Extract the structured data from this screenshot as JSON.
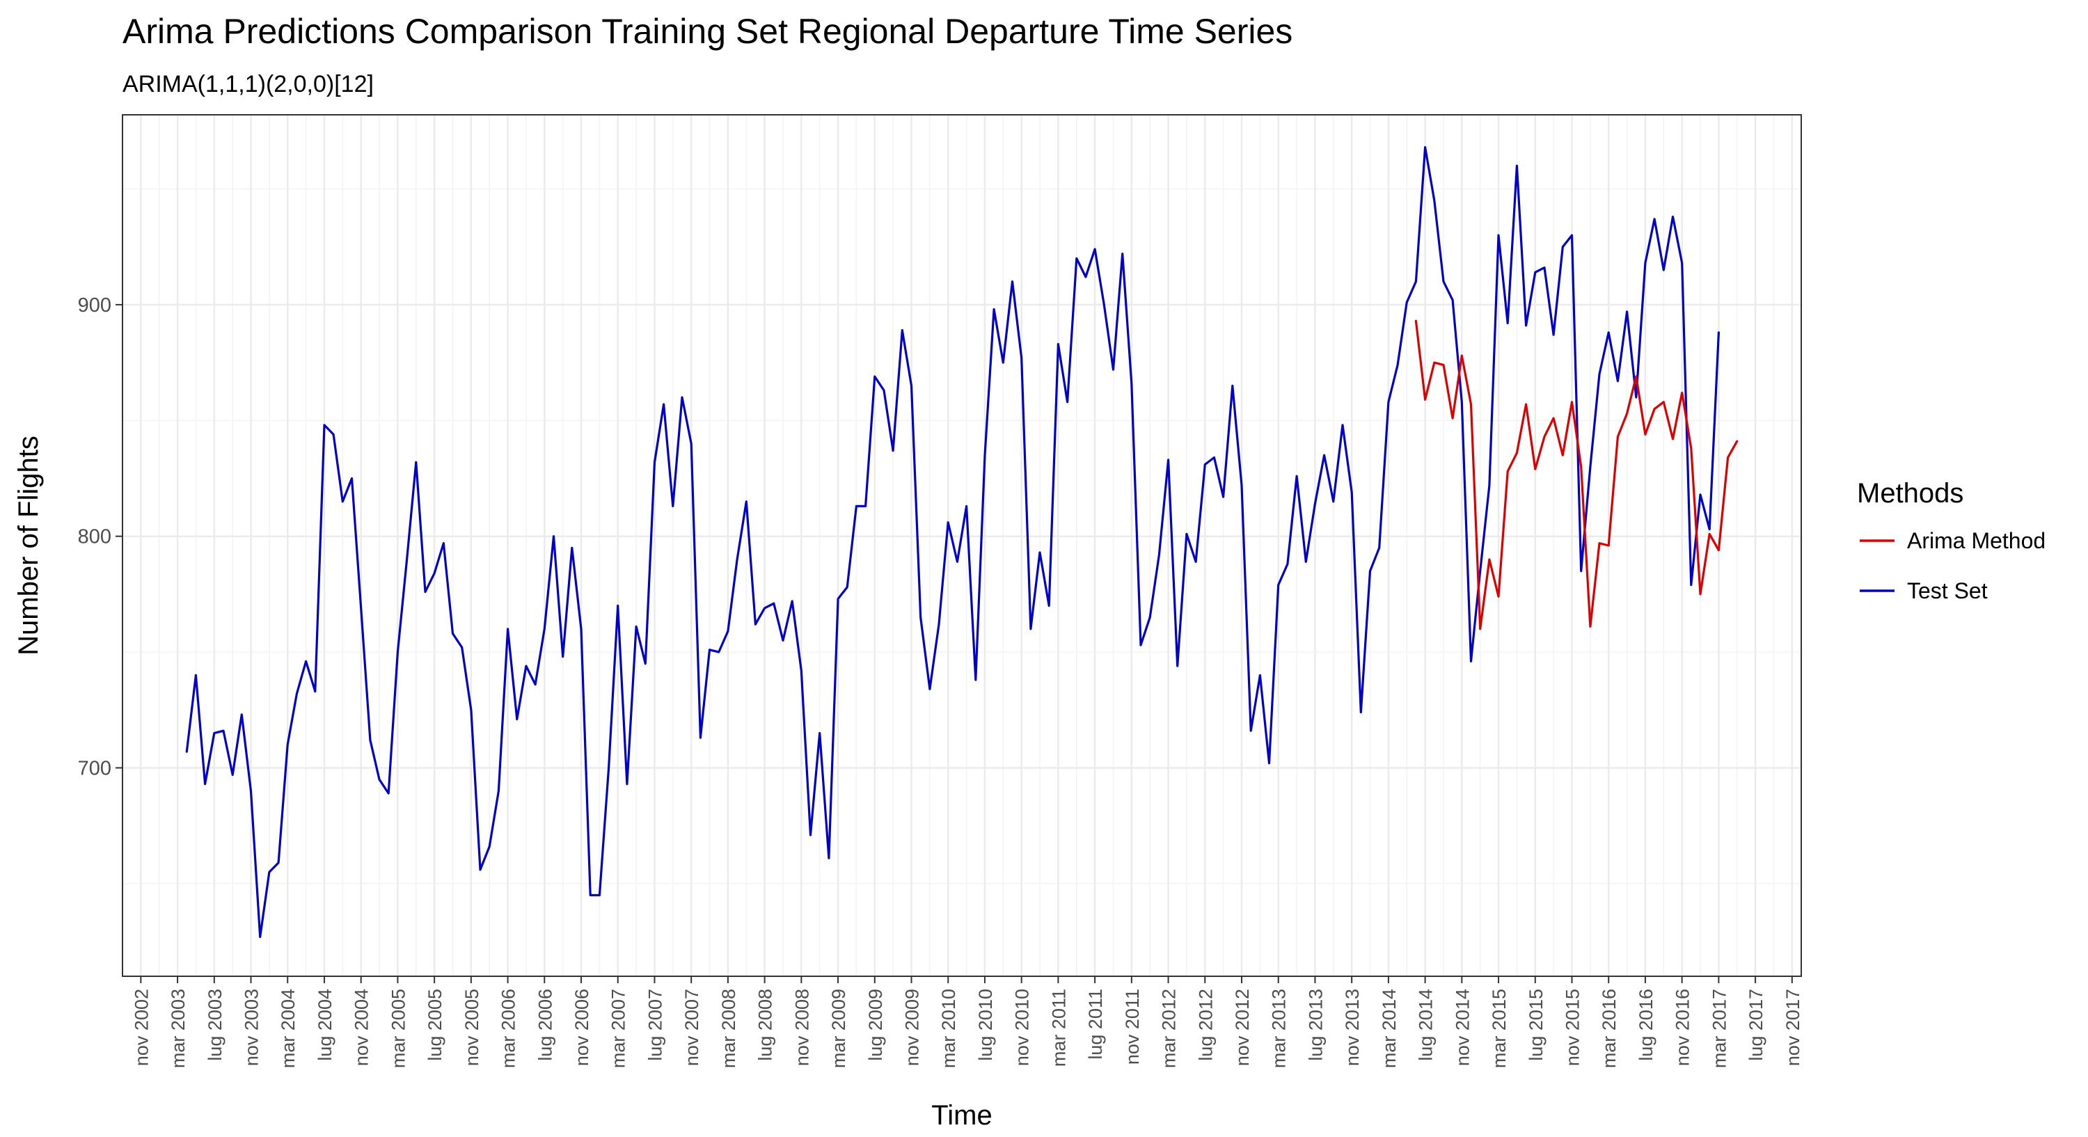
{
  "chart_data": {
    "type": "line",
    "title": "Arima Predictions Comparison Training Set Regional Departure Time Series",
    "subtitle": "ARIMA(1,1,1)(2,0,0)[12]",
    "xlabel": "Time",
    "ylabel": "Number of Flights",
    "x_start": "2003-04",
    "x_step": "month",
    "xlim": [
      "2002-09",
      "2017-12"
    ],
    "ylim": [
      610,
      982
    ],
    "yticks": [
      700,
      800,
      900
    ],
    "xtick_labels": [
      "nov 2002",
      "mar 2003",
      "lug 2003",
      "nov 2003",
      "mar 2004",
      "lug 2004",
      "nov 2004",
      "mar 2005",
      "lug 2005",
      "nov 2005",
      "mar 2006",
      "lug 2006",
      "nov 2006",
      "mar 2007",
      "lug 2007",
      "nov 2007",
      "mar 2008",
      "lug 2008",
      "nov 2008",
      "mar 2009",
      "lug 2009",
      "nov 2009",
      "mar 2010",
      "lug 2010",
      "nov 2010",
      "mar 2011",
      "lug 2011",
      "nov 2011",
      "mar 2012",
      "lug 2012",
      "nov 2012",
      "mar 2013",
      "lug 2013",
      "nov 2013",
      "mar 2014",
      "lug 2014",
      "nov 2014",
      "mar 2015",
      "lug 2015",
      "nov 2015",
      "mar 2016",
      "lug 2016",
      "nov 2016",
      "mar 2017",
      "lug 2017",
      "nov 2017"
    ],
    "grid": true,
    "legend": {
      "title": "Methods",
      "position": "right"
    },
    "series": [
      {
        "name": "Test Set",
        "color": "#0000cc",
        "start": "2003-04",
        "values": [
          707,
          740,
          693,
          715,
          716,
          697,
          723,
          690,
          627,
          655,
          659,
          710,
          732,
          746,
          733,
          848,
          844,
          815,
          825,
          769,
          712,
          695,
          689,
          750,
          790,
          832,
          776,
          784,
          797,
          758,
          752,
          725,
          656,
          666,
          690,
          760,
          721,
          744,
          736,
          760,
          800,
          748,
          795,
          760,
          645,
          645,
          700,
          770,
          693,
          761,
          745,
          832,
          857,
          813,
          860,
          840,
          713,
          751,
          750,
          759,
          790,
          815,
          762,
          769,
          771,
          755,
          772,
          742,
          671,
          715,
          661,
          773,
          778,
          813,
          813,
          869,
          863,
          837,
          889,
          865,
          765,
          734,
          762,
          806,
          789,
          813,
          738,
          835,
          898,
          875,
          910,
          877,
          760,
          793,
          770,
          883,
          858,
          920,
          912,
          924,
          900,
          872,
          922,
          866,
          753,
          765,
          792,
          833,
          744,
          801,
          789,
          831,
          834,
          817,
          865,
          822,
          716,
          740,
          702,
          779,
          788,
          826,
          789,
          814,
          835,
          815,
          848,
          819,
          724,
          785,
          795,
          858,
          874,
          901,
          910,
          968,
          945,
          910,
          902,
          858,
          746,
          785,
          822,
          930,
          892,
          960,
          891,
          914,
          916,
          887,
          925,
          930,
          785,
          830,
          870,
          888,
          867,
          897,
          860,
          918,
          937,
          915,
          938,
          918,
          779,
          818,
          803,
          888
        ]
      },
      {
        "name": "Arima Method",
        "color": "#dd0000",
        "start": "2014-06",
        "values": [
          893,
          859,
          875,
          874,
          851,
          878,
          857,
          760,
          790,
          774,
          828,
          836,
          857,
          829,
          843,
          851,
          835,
          858,
          830,
          761,
          797,
          796,
          843,
          853,
          869,
          844,
          855,
          858,
          842,
          862,
          838,
          775,
          801,
          794,
          834,
          841
        ]
      }
    ]
  }
}
